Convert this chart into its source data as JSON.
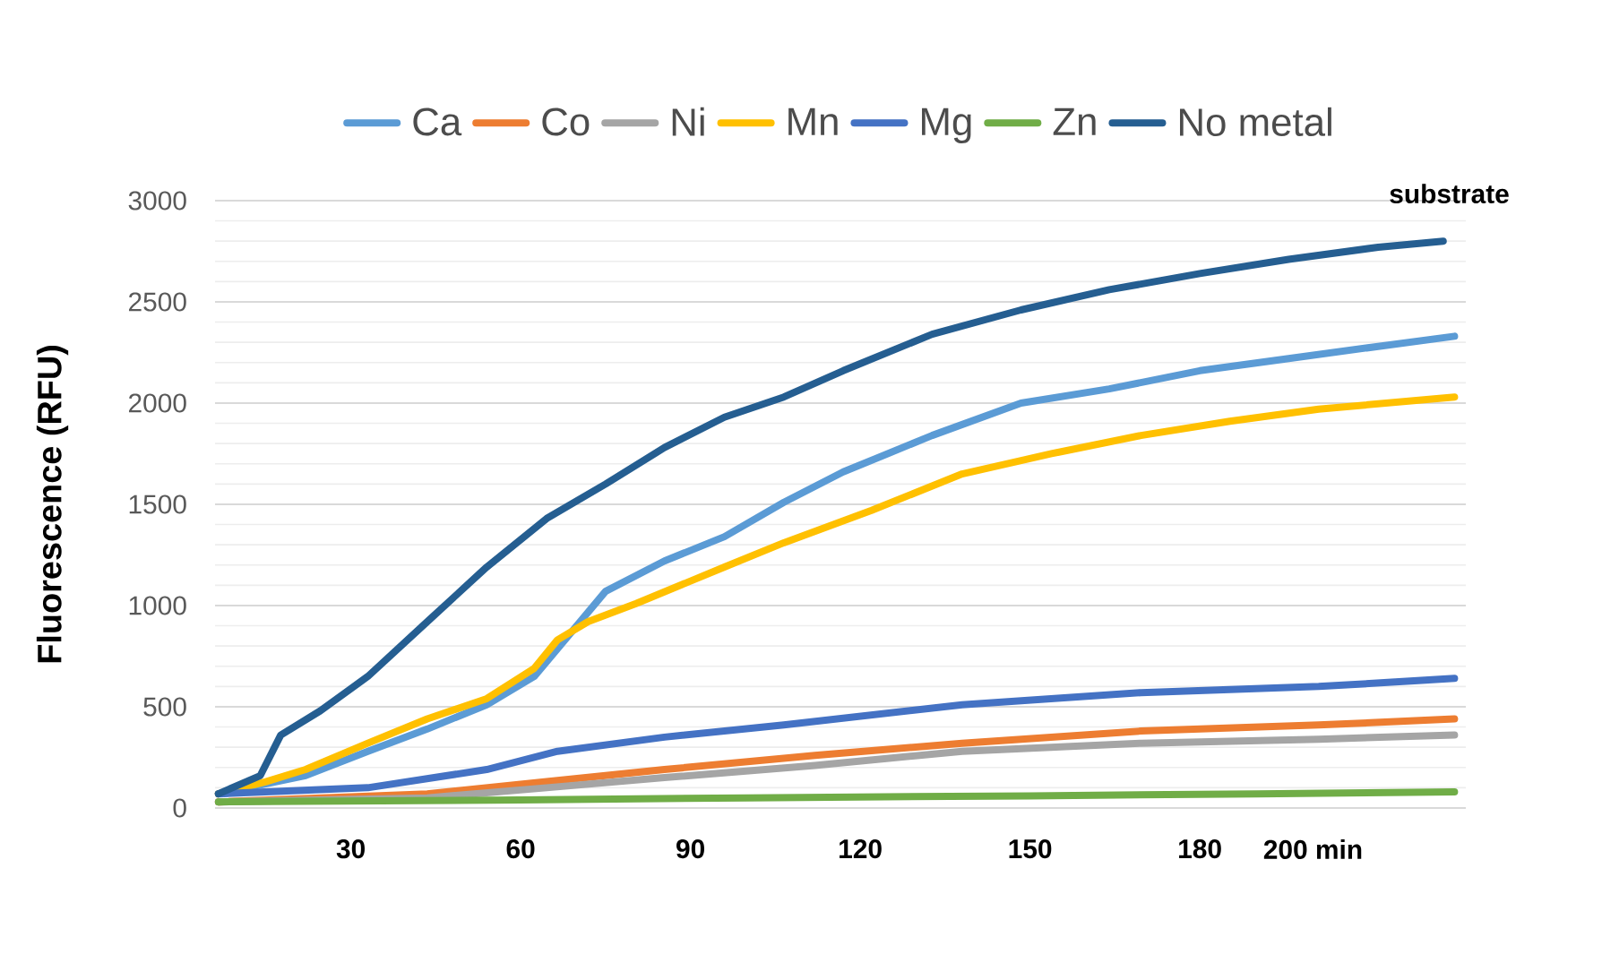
{
  "chart_data": {
    "type": "line",
    "ylabel": "Fluorescence (RFU)",
    "annotations": [
      "substrate"
    ],
    "xlim": [
      6,
      227
    ],
    "xticks": [
      30,
      60,
      90,
      120,
      150,
      180,
      {
        "value": 200,
        "label": "200 min"
      }
    ],
    "ylim": [
      0,
      3000
    ],
    "yticks": [
      0,
      500,
      1000,
      1500,
      2000,
      2500,
      3000
    ],
    "grid": "y",
    "legend": "top",
    "marker": "none",
    "line_style": "solid",
    "series": [
      {
        "name": "Ca",
        "color": "#5b9bd5",
        "x": [
          6.6,
          22,
          33,
          43.5,
          54,
          62.4,
          69.6,
          75,
          85.4,
          96,
          106.5,
          117,
          132.7,
          148.4,
          164,
          180,
          195.7,
          211.5,
          225
        ],
        "values": [
          70,
          160,
          280,
          390,
          510,
          650,
          890,
          1070,
          1220,
          1340,
          1510,
          1660,
          1840,
          2000,
          2070,
          2160,
          2220,
          2280,
          2330
        ]
      },
      {
        "name": "Co",
        "color": "#ed7d31",
        "x": [
          6.6,
          43.5,
          64.6,
          85.4,
          112,
          138,
          169.6,
          201,
          225
        ],
        "values": [
          30,
          70,
          130,
          190,
          260,
          320,
          380,
          410,
          440
        ]
      },
      {
        "name": "Ni",
        "color": "#a5a5a5",
        "x": [
          6.6,
          43.5,
          64.6,
          85.4,
          112,
          138,
          169.6,
          201,
          225
        ],
        "values": [
          30,
          50,
          100,
          150,
          210,
          280,
          320,
          340,
          360
        ]
      },
      {
        "name": "Mn",
        "color": "#ffc000",
        "x": [
          6.6,
          15,
          22,
          33,
          43.5,
          54,
          62.4,
          66.5,
          71.9,
          80.4,
          96,
          106.5,
          122,
          138,
          153.8,
          169.6,
          185.3,
          201,
          225
        ],
        "values": [
          70,
          130,
          190,
          320,
          440,
          540,
          690,
          830,
          920,
          1010,
          1190,
          1310,
          1470,
          1650,
          1750,
          1840,
          1910,
          1970,
          2030
        ]
      },
      {
        "name": "Mg",
        "color": "#4472c4",
        "x": [
          6.6,
          33,
          54,
          66.5,
          85.4,
          106.5,
          138,
          169.6,
          201,
          225
        ],
        "values": [
          70,
          100,
          190,
          280,
          350,
          410,
          510,
          570,
          600,
          640
        ]
      },
      {
        "name": "Zn",
        "color": "#70ad47",
        "x": [
          6.6,
          60,
          100,
          150,
          190,
          225
        ],
        "values": [
          30,
          40,
          50,
          60,
          70,
          80
        ]
      },
      {
        "name": "No metal",
        "color": "#255e91",
        "x": [
          6.6,
          14,
          17.6,
          24.6,
          33,
          43.5,
          54,
          64.6,
          75,
          85.4,
          96,
          106.5,
          117,
          132.7,
          148.4,
          164,
          180,
          195.7,
          211.5,
          223
        ],
        "values": [
          70,
          160,
          360,
          480,
          650,
          920,
          1190,
          1430,
          1600,
          1780,
          1930,
          2030,
          2160,
          2340,
          2460,
          2560,
          2640,
          2710,
          2770,
          2800
        ]
      }
    ]
  }
}
